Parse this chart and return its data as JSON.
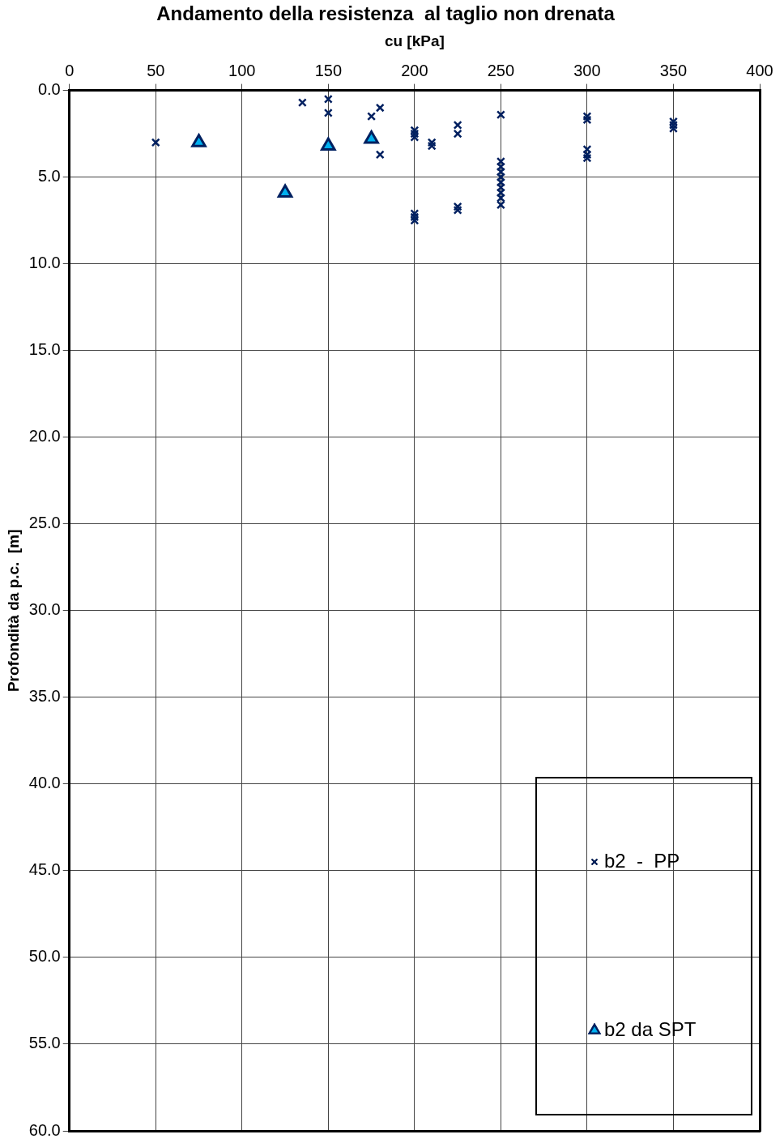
{
  "chart_data": {
    "type": "scatter",
    "title": "Andamento della resistenza  al taglio non drenata",
    "xlabel": "cu [kPa]",
    "ylabel": "Profondità da p.c.  [m]",
    "xlim": [
      0,
      400
    ],
    "xticks": [
      0,
      50,
      100,
      150,
      200,
      250,
      300,
      350,
      400
    ],
    "ylim": [
      60,
      0
    ],
    "yticks": [
      {
        "value": 0,
        "label": "0.0"
      },
      {
        "value": 5,
        "label": "5.0"
      },
      {
        "value": 10,
        "label": "10.0"
      },
      {
        "value": 15,
        "label": "15.0"
      },
      {
        "value": 20,
        "label": "20.0"
      },
      {
        "value": 25,
        "label": "25.0"
      },
      {
        "value": 30,
        "label": "30.0"
      },
      {
        "value": 35,
        "label": "35.0"
      },
      {
        "value": 40,
        "label": "40.0"
      },
      {
        "value": 45,
        "label": "45.0"
      },
      {
        "value": 50,
        "label": "50.0"
      },
      {
        "value": 55,
        "label": "55.0"
      },
      {
        "value": 60,
        "label": "60.0"
      }
    ],
    "grid": true,
    "legend": "bottom right",
    "series": [
      {
        "name": "b2  -  PP",
        "color": "#002060",
        "marker": "cross",
        "x": [
          50,
          135,
          150,
          150,
          175,
          180,
          180,
          200,
          200,
          200,
          210,
          210,
          225,
          225,
          250,
          250,
          250,
          250,
          250,
          250,
          250,
          250,
          250,
          250,
          200,
          200,
          200,
          225,
          225,
          300,
          300,
          300,
          300,
          300,
          350,
          350,
          350
        ],
        "values": [
          3.0,
          0.7,
          0.5,
          1.3,
          1.5,
          1.0,
          3.7,
          2.3,
          2.5,
          2.7,
          3.0,
          3.2,
          2.0,
          2.5,
          1.4,
          4.1,
          4.4,
          4.7,
          5.0,
          5.3,
          5.6,
          5.9,
          6.2,
          6.6,
          7.1,
          7.3,
          7.5,
          6.7,
          6.9,
          1.5,
          1.7,
          3.4,
          3.7,
          3.9,
          1.8,
          2.0,
          2.2
        ]
      },
      {
        "name": "b2 da SPT",
        "color": "#00b0f0",
        "marker": "triangle",
        "x": [
          75,
          150,
          125,
          175
        ],
        "values": [
          3.0,
          3.2,
          5.9,
          2.8
        ]
      }
    ]
  }
}
